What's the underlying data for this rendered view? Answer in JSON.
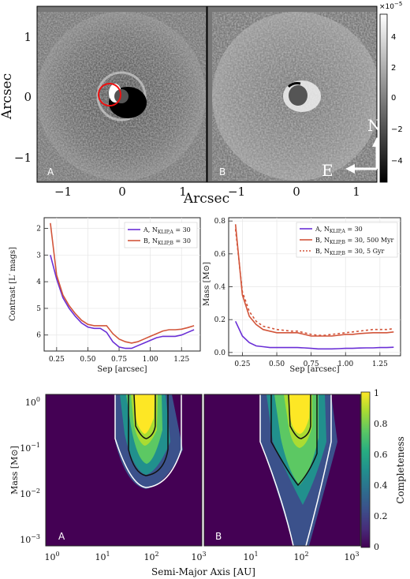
{
  "images": {
    "ylabel": "Arcsec",
    "xlabel": "Arcsec",
    "yticks": [
      "1",
      "0",
      "−1"
    ],
    "xticks": [
      "−1",
      "0",
      "1"
    ],
    "xticks_b": [
      "−1",
      "0",
      "1"
    ],
    "panel_a_label": "A",
    "panel_b_label": "B",
    "compass_n": "N",
    "compass_e": "E",
    "colorbar_exponent": "×10",
    "colorbar_exponent_power": "−5",
    "colorbar_ticks": [
      "4",
      "2",
      "0",
      "−2",
      "−4"
    ]
  },
  "chart_data": [
    {
      "type": "line",
      "xlabel": "Sep [arcsec]",
      "ylabel": "Contrast [L′ mags]",
      "xlim": [
        0.15,
        1.4
      ],
      "ylim": [
        6.6,
        1.6
      ],
      "y_inverted": true,
      "xticks": [
        "0.25",
        "0.50",
        "0.75",
        "1.00",
        "1.25"
      ],
      "yticks": [
        "2",
        "3",
        "4",
        "5",
        "6"
      ],
      "legend_position": "top-right",
      "x": [
        0.2,
        0.25,
        0.3,
        0.35,
        0.4,
        0.45,
        0.5,
        0.55,
        0.6,
        0.65,
        0.7,
        0.75,
        0.8,
        0.85,
        0.9,
        0.95,
        1.0,
        1.05,
        1.1,
        1.15,
        1.2,
        1.25,
        1.3,
        1.35
      ],
      "series": [
        {
          "name": "A, N",
          "sub": "KLIP,A",
          "suffix": " = 30",
          "color": "#6a2fd6",
          "dash": "",
          "values": [
            3.0,
            3.9,
            4.6,
            5.0,
            5.3,
            5.55,
            5.7,
            5.75,
            5.75,
            5.9,
            6.25,
            6.45,
            6.5,
            6.5,
            6.4,
            6.3,
            6.2,
            6.1,
            6.05,
            6.05,
            6.05,
            6.0,
            5.9,
            5.8
          ]
        },
        {
          "name": "B, N",
          "sub": "KLIP,B",
          "suffix": " = 30",
          "color": "#d2553a",
          "dash": "",
          "values": [
            1.8,
            3.75,
            4.5,
            4.9,
            5.2,
            5.45,
            5.6,
            5.65,
            5.65,
            5.65,
            5.95,
            6.15,
            6.25,
            6.3,
            6.25,
            6.15,
            6.05,
            5.95,
            5.85,
            5.8,
            5.8,
            5.78,
            5.72,
            5.65
          ]
        }
      ]
    },
    {
      "type": "line",
      "xlabel": "Sep [arcsec]",
      "ylabel": "Mass [M⊙]",
      "xlim": [
        0.15,
        1.4
      ],
      "ylim": [
        -0.02,
        0.82
      ],
      "xticks": [
        "0.25",
        "0.50",
        "0.75",
        "1.00",
        "1.25"
      ],
      "yticks": [
        "0.0",
        "0.2",
        "0.4",
        "0.6",
        "0.8"
      ],
      "legend_position": "top-right",
      "x": [
        0.2,
        0.25,
        0.3,
        0.35,
        0.4,
        0.45,
        0.5,
        0.55,
        0.6,
        0.65,
        0.7,
        0.75,
        0.8,
        0.85,
        0.9,
        0.95,
        1.0,
        1.05,
        1.1,
        1.15,
        1.2,
        1.25,
        1.3,
        1.35
      ],
      "series": [
        {
          "name": "A, N",
          "sub": "KLIP,A",
          "suffix": " = 30",
          "color": "#6a2fd6",
          "dash": "",
          "values": [
            0.19,
            0.1,
            0.06,
            0.04,
            0.035,
            0.03,
            0.03,
            0.03,
            0.03,
            0.03,
            0.028,
            0.025,
            0.022,
            0.022,
            0.022,
            0.023,
            0.025,
            0.025,
            0.027,
            0.028,
            0.028,
            0.03,
            0.03,
            0.032
          ]
        },
        {
          "name": "B, N",
          "sub": "KLIP,B",
          "suffix": " = 30, 500 Myr",
          "color": "#d2553a",
          "dash": "",
          "values": [
            0.78,
            0.35,
            0.22,
            0.17,
            0.14,
            0.13,
            0.12,
            0.12,
            0.12,
            0.12,
            0.11,
            0.1,
            0.1,
            0.1,
            0.1,
            0.105,
            0.11,
            0.11,
            0.115,
            0.118,
            0.12,
            0.12,
            0.12,
            0.125
          ]
        },
        {
          "name": "B, N",
          "sub": "KLIP,B",
          "suffix": " = 30, 5 Gyr",
          "color": "#d2553a",
          "dash": "3,3",
          "values": [
            0.75,
            0.37,
            0.25,
            0.19,
            0.16,
            0.15,
            0.14,
            0.135,
            0.13,
            0.13,
            0.12,
            0.11,
            0.105,
            0.105,
            0.11,
            0.115,
            0.12,
            0.125,
            0.13,
            0.135,
            0.14,
            0.14,
            0.14,
            0.145
          ]
        }
      ]
    },
    {
      "type": "heatmap",
      "xlabel": "Semi-Major Axis [AU]",
      "ylabel": "Mass [M⊙]",
      "x_scale": "log",
      "y_scale": "log",
      "xlim": [
        1,
        1000
      ],
      "ylim": [
        0.0007,
        1.3
      ],
      "xtick_base": "10",
      "xtick_exps": [
        "0",
        "1",
        "2",
        "3"
      ],
      "ytick_base": "10",
      "ytick_exps": [
        "0",
        "−1",
        "−2",
        "−3"
      ],
      "panel_labels": [
        "A",
        "B"
      ],
      "colorbar_label": "Completeness",
      "colorbar_range": [
        0,
        1
      ],
      "colorbar_ticks": [
        "1",
        "0.8",
        "0.6",
        "0.4",
        "0.2",
        "0"
      ],
      "colormap": "viridis"
    }
  ]
}
